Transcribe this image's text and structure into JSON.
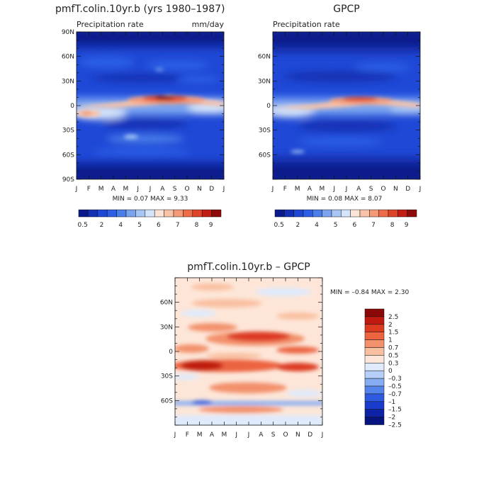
{
  "months": [
    "J",
    "F",
    "M",
    "A",
    "M",
    "J",
    "J",
    "A",
    "S",
    "O",
    "N",
    "D",
    "J"
  ],
  "panel_left": {
    "title": "pmfT.colin.10yr.b (yrs 1980–1987)",
    "subtitle_left": "Precipitation rate",
    "subtitle_right": "mm/day",
    "lat_labels": [
      "90N",
      "60N",
      "30N",
      "0",
      "30S",
      "60S",
      "90S"
    ],
    "stats": "MIN =    0.07  MAX =    9.33",
    "colorbar_labels": [
      "0.5",
      "2",
      "4",
      "5",
      "6",
      "7",
      "8",
      "9"
    ]
  },
  "panel_right": {
    "title": "GPCP",
    "subtitle_left": "Precipitation rate",
    "lat_labels": [
      "60N",
      "30N",
      "0",
      "30S",
      "60S"
    ],
    "stats": "MIN =    0.08  MAX =    8.07",
    "colorbar_labels": [
      "0.5",
      "2",
      "4",
      "5",
      "6",
      "7",
      "8",
      "9"
    ]
  },
  "panel_diff": {
    "title": "pmfT.colin.10yr.b  –  GPCP",
    "lat_labels": [
      "60N",
      "30N",
      "0",
      "30S",
      "60S"
    ],
    "stats": "MIN =   –0.84  MAX =    2.30",
    "colorbar_labels": [
      "2.5",
      "2",
      "1.5",
      "1",
      "0.7",
      "0.5",
      "0.3",
      "0",
      "–0.3",
      "–0.5",
      "–0.7",
      "–1",
      "–1.5",
      "–2",
      "–2.5"
    ]
  },
  "colors": {
    "precip_scale": [
      "#0a1a8c",
      "#1430b4",
      "#1f48d6",
      "#2c5ee6",
      "#4a7ee8",
      "#7aa4ef",
      "#a8c6f4",
      "#d4e4fa",
      "#fbe3d6",
      "#f9c3a8",
      "#f59a76",
      "#ee6c48",
      "#de4428",
      "#c21e14",
      "#8e0a08"
    ],
    "diff_scale": [
      "#07137e",
      "#0e22a8",
      "#1a3ccc",
      "#2e5ae0",
      "#5585ea",
      "#86acf2",
      "#b6cff8",
      "#dfeafc",
      "#fde6d8",
      "#f9c0a0",
      "#f3916c",
      "#ec6440",
      "#dd3b20",
      "#c01a10",
      "#8a0806"
    ]
  },
  "chart_data": [
    {
      "type": "heatmap",
      "title": "pmfT.colin.10yr.b (yrs 1980–1987)",
      "subtitle": "Precipitation rate",
      "units": "mm/day",
      "x": [
        "J",
        "F",
        "M",
        "A",
        "M",
        "J",
        "J",
        "A",
        "S",
        "O",
        "N",
        "D",
        "J"
      ],
      "y_range": [
        -90,
        90
      ],
      "min": 0.07,
      "max": 9.33,
      "levels": [
        0.5,
        1,
        2,
        3,
        4,
        4.5,
        5,
        5.5,
        6,
        6.5,
        7,
        7.5,
        8,
        8.5,
        9
      ],
      "features": {
        "itcz_peak_lat": [
          8,
          5,
          2,
          3,
          5,
          8,
          10,
          11,
          10,
          9,
          8,
          7,
          8
        ],
        "itcz_peak_value": [
          6.5,
          5.5,
          5.5,
          6,
          7,
          8,
          8.5,
          9.3,
          8.5,
          8,
          7.5,
          7,
          6.5
        ]
      }
    },
    {
      "type": "heatmap",
      "title": "GPCP",
      "subtitle": "Precipitation rate",
      "x": [
        "J",
        "F",
        "M",
        "A",
        "M",
        "J",
        "J",
        "A",
        "S",
        "O",
        "N",
        "D",
        "J"
      ],
      "y_range": [
        -90,
        90
      ],
      "min": 0.08,
      "max": 8.07,
      "levels": [
        0.5,
        1,
        2,
        3,
        4,
        4.5,
        5,
        5.5,
        6,
        6.5,
        7,
        7.5,
        8,
        8.5,
        9
      ],
      "features": {
        "itcz_peak_lat": [
          6,
          4,
          3,
          4,
          5,
          7,
          9,
          10,
          9,
          8,
          7,
          6,
          6
        ],
        "itcz_peak_value": [
          5.5,
          5,
          5,
          5.5,
          6,
          7,
          7.5,
          8,
          7.5,
          7,
          6.5,
          6,
          5.5
        ]
      }
    },
    {
      "type": "heatmap",
      "title": "pmfT.colin.10yr.b  –  GPCP",
      "x": [
        "J",
        "F",
        "M",
        "A",
        "M",
        "J",
        "J",
        "A",
        "S",
        "O",
        "N",
        "D",
        "J"
      ],
      "y_range": [
        -90,
        90
      ],
      "min": -0.84,
      "max": 2.3,
      "levels": [
        -2.5,
        -2,
        -1.5,
        -1,
        -0.7,
        -0.5,
        -0.3,
        0,
        0.3,
        0.5,
        0.7,
        1,
        1.5,
        2,
        2.5
      ]
    }
  ]
}
